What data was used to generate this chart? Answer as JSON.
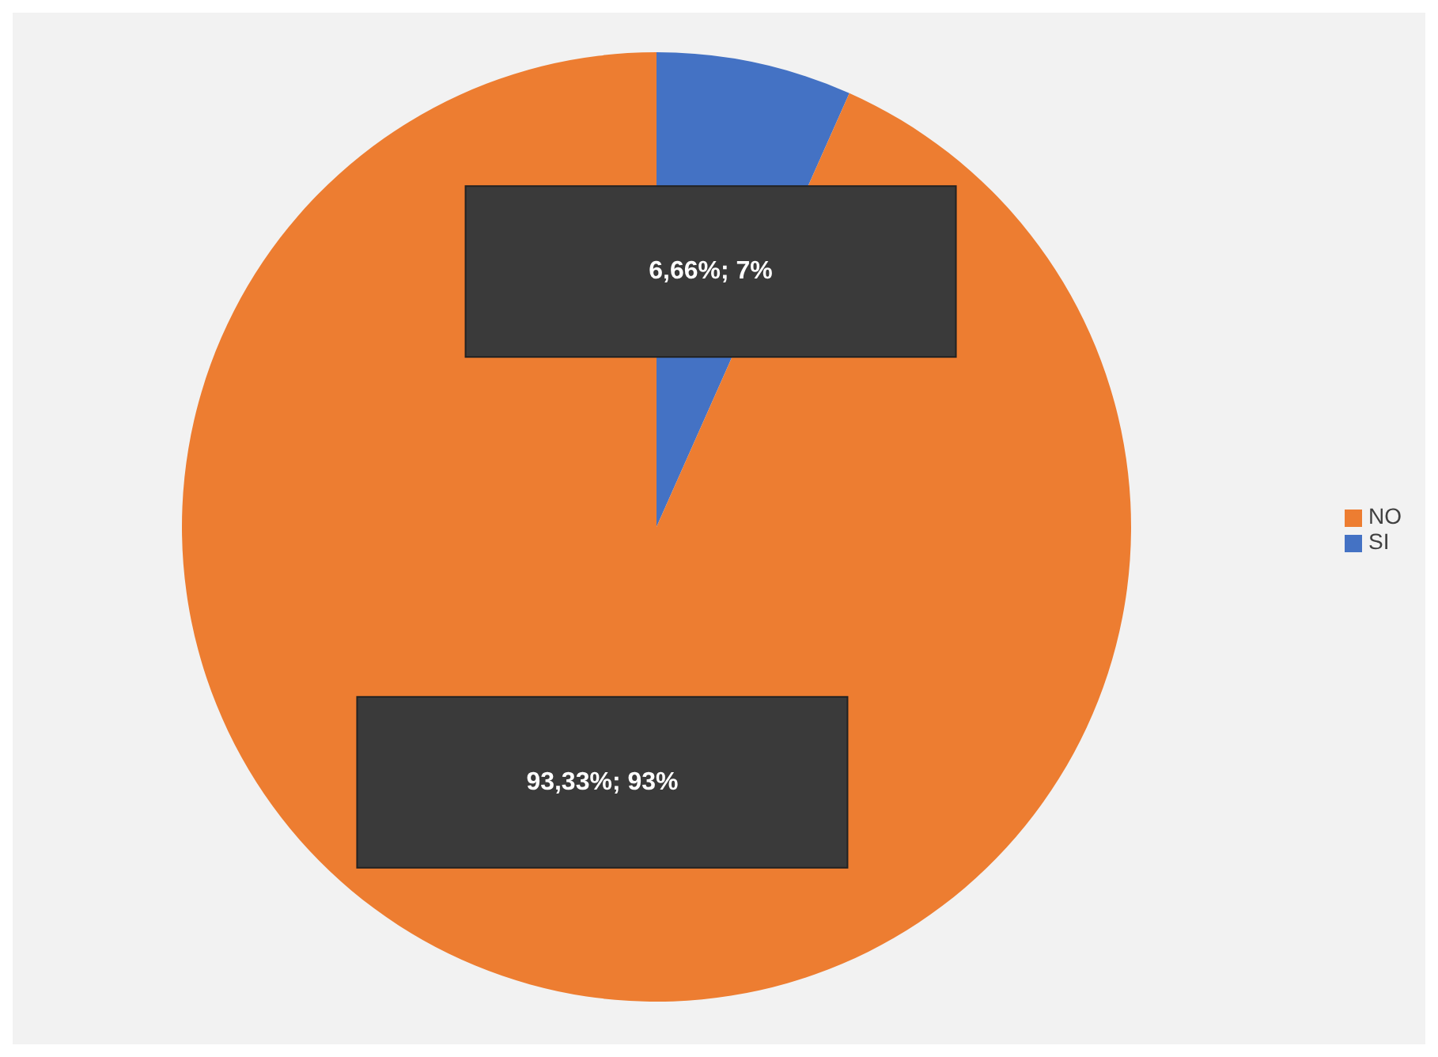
{
  "chart_data": {
    "type": "pie",
    "categories": [
      "SI",
      "NO"
    ],
    "values": [
      6.66,
      93.33
    ],
    "colors": [
      "#4472c4",
      "#ed7d31"
    ],
    "value_labels": [
      "6,66%; 7%",
      "93,33%; 93%"
    ],
    "legend": "right"
  }
}
